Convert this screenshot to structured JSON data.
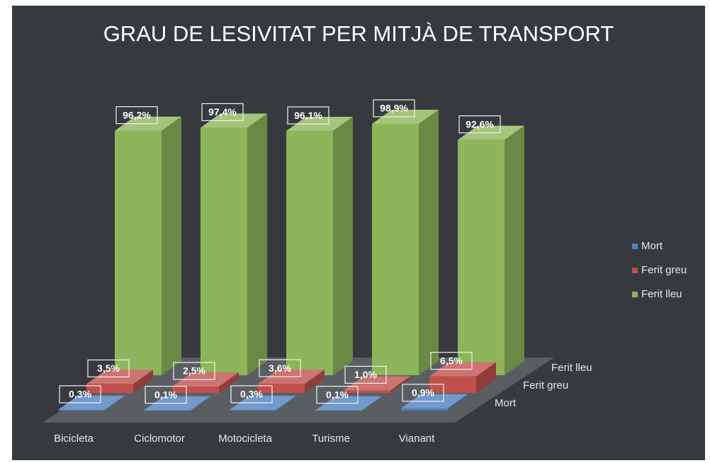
{
  "chart_data": {
    "type": "bar3d",
    "title": "GRAU DE LESIVITAT PER MITJÀ DE TRANSPORT",
    "categories": [
      "Bicicleta",
      "Ciclomotor",
      "Motocicleta",
      "Turisme",
      "Vianant"
    ],
    "series": [
      {
        "name": "Mort",
        "color": "#4f81bd",
        "values": [
          0.3,
          0.1,
          0.3,
          0.1,
          0.9
        ],
        "value_labels": [
          "0,3%",
          "0,1%",
          "0,3%",
          "0,1%",
          "0,9%"
        ]
      },
      {
        "name": "Ferit greu",
        "color": "#c0504d",
        "values": [
          3.5,
          2.5,
          3.6,
          1.0,
          6.5
        ],
        "value_labels": [
          "3,5%",
          "2,5%",
          "3,6%",
          "1,0%",
          "6,5%"
        ]
      },
      {
        "name": "Ferit lleu",
        "color": "#8db65a",
        "values": [
          96.2,
          97.4,
          96.1,
          98.9,
          92.6
        ],
        "value_labels": [
          "96,2%",
          "97,4%",
          "96,1%",
          "98,9%",
          "92,6%"
        ]
      }
    ],
    "legend": "right"
  }
}
